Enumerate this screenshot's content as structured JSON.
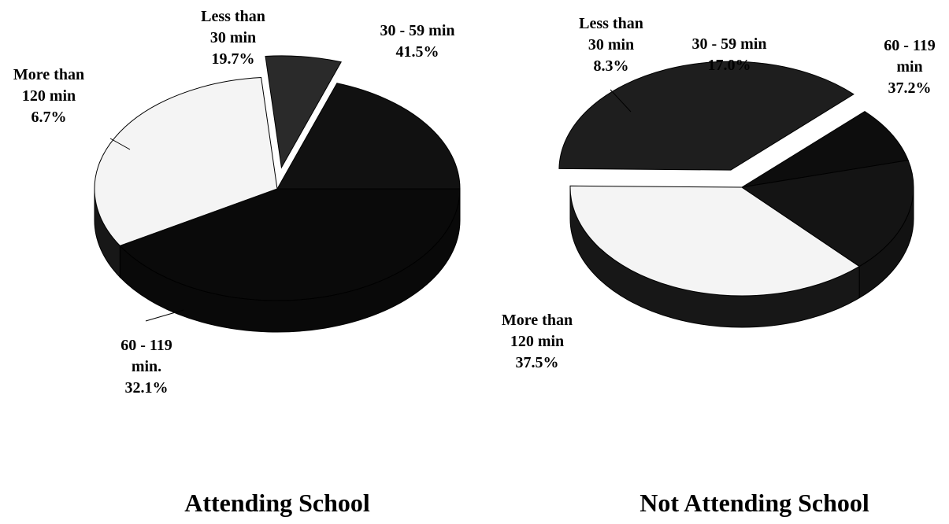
{
  "chart_data": [
    {
      "type": "pie",
      "title": "Attending School",
      "slices": [
        {
          "name": "30 - 59 min",
          "label_lines": [
            "30 - 59 min",
            "41.5%"
          ],
          "value": 41.5,
          "color": "#0a0a0a"
        },
        {
          "name": "60 - 119 min.",
          "label_lines": [
            "60 - 119",
            "min.",
            "32.1%"
          ],
          "value": 32.1,
          "color": "#f4f4f4"
        },
        {
          "name": "More than 120 min",
          "label_lines": [
            "More than",
            "120 min",
            "6.7%"
          ],
          "value": 6.7,
          "color": "#2a2a2a",
          "exploded": true
        },
        {
          "name": "Less than 30 min",
          "label_lines": [
            "Less than",
            "30 min",
            "19.7%"
          ],
          "value": 19.7,
          "color": "#111111"
        }
      ]
    },
    {
      "type": "pie",
      "title": "Not Attending School",
      "slices": [
        {
          "name": "60 - 119 min",
          "label_lines": [
            "60 - 119",
            "min",
            "37.2%"
          ],
          "value": 37.2,
          "color": "#f4f4f4"
        },
        {
          "name": "More than 120 min",
          "label_lines": [
            "More than",
            "120 min",
            "37.5%"
          ],
          "value": 37.5,
          "color": "#1e1e1e",
          "exploded": true
        },
        {
          "name": "Less than 30 min",
          "label_lines": [
            "Less than",
            "30 min",
            "8.3%"
          ],
          "value": 8.3,
          "color": "#0d0d0d"
        },
        {
          "name": "30 - 59 min",
          "label_lines": [
            "30 - 59 min",
            "17.0%"
          ],
          "value": 17.0,
          "color": "#141414"
        }
      ]
    }
  ]
}
